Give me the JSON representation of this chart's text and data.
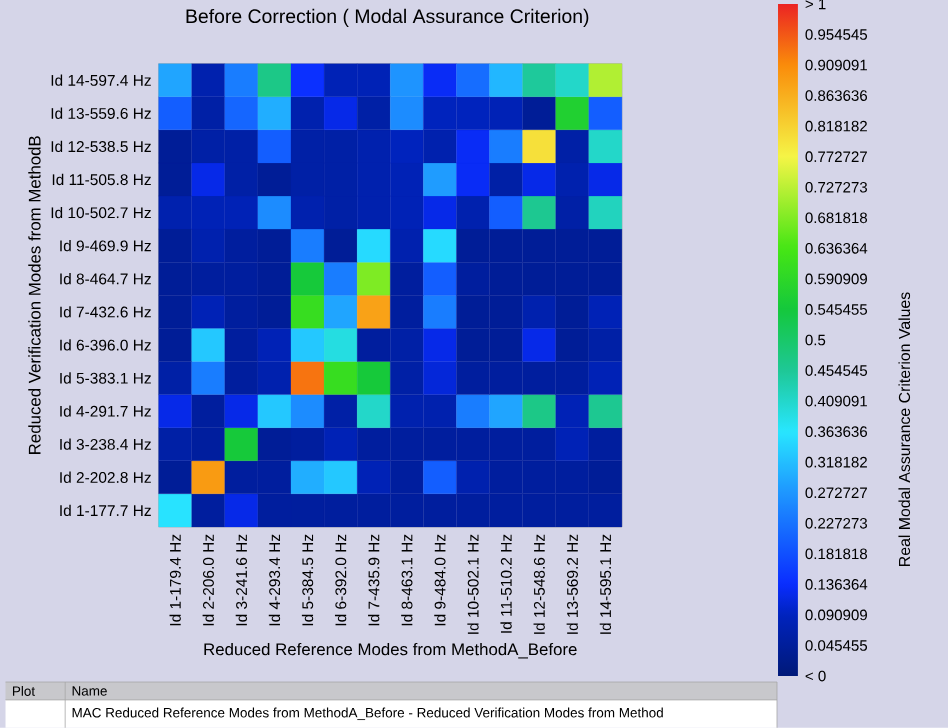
{
  "chart_data": {
    "type": "heatmap",
    "title": "Before  Correction ( Modal Assurance Criterion)",
    "xlabel": "Reduced Reference Modes from MethodA_Before",
    "ylabel": "Reduced Verification Modes from MethodB",
    "clabel": "Real Modal Assurance Criterion Values",
    "categories": [
      "Id 1-179.4 Hz",
      "Id 2-206.0 Hz",
      "Id 3-241.6 Hz",
      "Id 4-293.4 Hz",
      "Id 5-384.5 Hz",
      "Id 6-392.0 Hz",
      "Id 7-435.9 Hz",
      "Id 8-463.1 Hz",
      "Id 9-484.0 Hz",
      "Id 10-502.1 Hz",
      "Id 11-510.2 Hz",
      "Id 12-548.6 Hz",
      "Id 13-569.2 Hz",
      "Id 14-595.1 Hz"
    ],
    "y_categories": [
      "Id 14-597.4 Hz",
      "Id 13-559.6 Hz",
      "Id 12-538.5 Hz",
      "Id 11-505.8 Hz",
      "Id 10-502.7 Hz",
      "Id 9-469.9 Hz",
      "Id 8-464.7 Hz",
      "Id 7-432.6 Hz",
      "Id 6-396.0 Hz",
      "Id 5-383.1 Hz",
      "Id 4-291.7 Hz",
      "Id 3-238.4 Hz",
      "Id 2-202.8 Hz",
      "Id 1-177.7 Hz"
    ],
    "cells": [
      [
        0.29,
        0.07,
        0.24,
        0.47,
        0.14,
        0.08,
        0.08,
        0.27,
        0.13,
        0.22,
        0.31,
        0.45,
        0.41,
        0.72
      ],
      [
        0.2,
        0.06,
        0.21,
        0.3,
        0.07,
        0.12,
        0.06,
        0.26,
        0.09,
        0.09,
        0.08,
        0.04,
        0.57,
        0.2
      ],
      [
        0.04,
        0.06,
        0.06,
        0.2,
        0.06,
        0.06,
        0.07,
        0.09,
        0.07,
        0.13,
        0.24,
        0.8,
        0.06,
        0.41
      ],
      [
        0.04,
        0.12,
        0.06,
        0.04,
        0.06,
        0.06,
        0.07,
        0.08,
        0.28,
        0.13,
        0.06,
        0.12,
        0.07,
        0.12
      ],
      [
        0.07,
        0.08,
        0.08,
        0.26,
        0.07,
        0.06,
        0.07,
        0.08,
        0.12,
        0.07,
        0.2,
        0.46,
        0.06,
        0.42
      ],
      [
        0.04,
        0.07,
        0.05,
        0.04,
        0.24,
        0.04,
        0.35,
        0.07,
        0.35,
        0.04,
        0.04,
        0.04,
        0.04,
        0.04
      ],
      [
        0.04,
        0.05,
        0.05,
        0.04,
        0.55,
        0.24,
        0.68,
        0.05,
        0.2,
        0.05,
        0.04,
        0.04,
        0.04,
        0.04
      ],
      [
        0.04,
        0.08,
        0.05,
        0.04,
        0.61,
        0.29,
        0.88,
        0.05,
        0.24,
        0.04,
        0.04,
        0.07,
        0.04,
        0.08
      ],
      [
        0.04,
        0.33,
        0.05,
        0.08,
        0.33,
        0.39,
        0.05,
        0.06,
        0.12,
        0.04,
        0.04,
        0.12,
        0.04,
        0.06
      ],
      [
        0.06,
        0.24,
        0.05,
        0.07,
        0.93,
        0.61,
        0.55,
        0.06,
        0.11,
        0.05,
        0.05,
        0.05,
        0.05,
        0.08
      ],
      [
        0.12,
        0.05,
        0.12,
        0.33,
        0.26,
        0.06,
        0.41,
        0.07,
        0.07,
        0.24,
        0.29,
        0.47,
        0.08,
        0.46
      ],
      [
        0.06,
        0.05,
        0.55,
        0.04,
        0.05,
        0.08,
        0.05,
        0.05,
        0.05,
        0.05,
        0.05,
        0.05,
        0.08,
        0.05
      ],
      [
        0.04,
        0.89,
        0.05,
        0.05,
        0.3,
        0.33,
        0.08,
        0.05,
        0.2,
        0.07,
        0.05,
        0.05,
        0.05,
        0.04
      ],
      [
        0.36,
        0.05,
        0.12,
        0.05,
        0.05,
        0.05,
        0.05,
        0.05,
        0.05,
        0.05,
        0.05,
        0.05,
        0.05,
        0.05
      ]
    ],
    "clim": [
      0,
      1
    ],
    "cticks": [
      {
        "value": 1,
        "label": "> 1"
      },
      0.954545,
      0.909091,
      0.863636,
      0.818182,
      0.772727,
      0.727273,
      0.681818,
      0.636364,
      0.590909,
      0.545455,
      0.5,
      0.454545,
      0.409091,
      0.363636,
      0.318182,
      0.272727,
      0.227273,
      0.181818,
      0.136364,
      0.090909,
      0.045455,
      {
        "value": 0,
        "label": "< 0"
      }
    ],
    "annotations": [
      "Plot",
      "Name",
      "MAC Reduced Reference Modes from MethodA_Before - Reduced Verification Modes from Method"
    ]
  }
}
